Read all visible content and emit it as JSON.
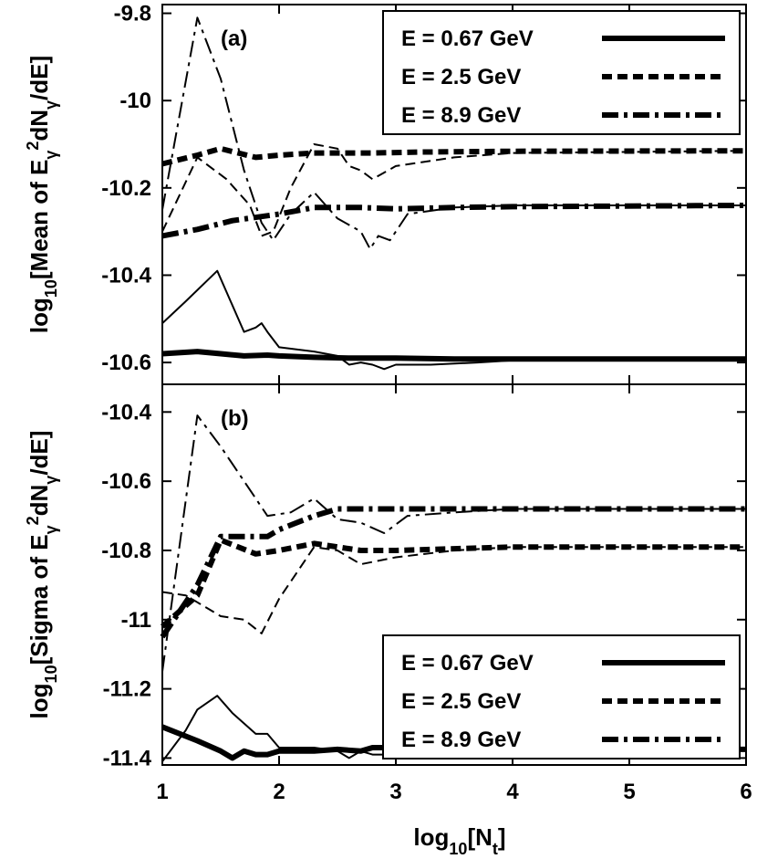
{
  "chart_data": {
    "type": "line",
    "x_axis": {
      "label_parts": [
        "log",
        "10",
        "[N",
        "t",
        "]"
      ],
      "range": [
        1,
        6
      ],
      "ticks": [
        1,
        2,
        3,
        4,
        5,
        6
      ],
      "tick_labels": [
        "1",
        "2",
        "3",
        "4",
        "5",
        "6"
      ]
    },
    "panels": [
      {
        "id": "a",
        "panel_label": "(a)",
        "ylabel_parts": [
          "log",
          "10",
          "[Mean of E",
          "γ",
          "2",
          "dN",
          "γ",
          "/dE]"
        ],
        "ylim": [
          -10.65,
          -9.78
        ],
        "yticks": [
          -9.8,
          -10,
          -10.2,
          -10.4,
          -10.6
        ],
        "ytick_labels": [
          "-9.8",
          "-10",
          "-10.2",
          "-10.4",
          "-10.6"
        ],
        "legend": {
          "position": "top-right",
          "entries": [
            {
              "label": "E = 0.67 GeV",
              "style": "solid"
            },
            {
              "label": "E = 2.5 GeV",
              "style": "dashed"
            },
            {
              "label": "E = 8.9 GeV",
              "style": "dashdot"
            }
          ]
        },
        "series": [
          {
            "name": "E = 0.67 GeV",
            "variant": "thick",
            "style": "solid",
            "x": [
              1,
              1.3,
              1.5,
              1.7,
              1.9,
              2,
              2.3,
              2.6,
              3,
              3.5,
              4,
              6
            ],
            "y": [
              -10.58,
              -10.575,
              -10.58,
              -10.585,
              -10.583,
              -10.585,
              -10.588,
              -10.59,
              -10.59,
              -10.592,
              -10.592,
              -10.592
            ]
          },
          {
            "name": "E = 0.67 GeV",
            "variant": "thin",
            "style": "solid",
            "x": [
              1,
              1.2,
              1.47,
              1.7,
              1.8,
              1.85,
              1.9,
              2,
              2.3,
              2.5,
              2.6,
              2.7,
              2.8,
              2.9,
              3,
              3.3,
              3.7,
              4,
              6
            ],
            "y": [
              -10.51,
              -10.46,
              -10.39,
              -10.53,
              -10.52,
              -10.51,
              -10.53,
              -10.565,
              -10.575,
              -10.585,
              -10.605,
              -10.6,
              -10.605,
              -10.615,
              -10.605,
              -10.605,
              -10.6,
              -10.595,
              -10.595
            ]
          },
          {
            "name": "E = 2.5 GeV",
            "variant": "thick",
            "style": "dashed",
            "x": [
              1,
              1.3,
              1.5,
              1.8,
              2,
              2.3,
              2.8,
              3.2,
              3.6,
              4,
              6
            ],
            "y": [
              -10.145,
              -10.125,
              -10.11,
              -10.13,
              -10.125,
              -10.12,
              -10.12,
              -10.118,
              -10.117,
              -10.116,
              -10.115
            ]
          },
          {
            "name": "E = 2.5 GeV",
            "variant": "thin",
            "style": "dashed",
            "x": [
              1,
              1.3,
              1.55,
              1.75,
              1.85,
              1.95,
              2.1,
              2.3,
              2.5,
              2.6,
              2.7,
              2.8,
              3,
              3.5,
              4,
              6
            ],
            "y": [
              -10.3,
              -10.13,
              -10.18,
              -10.24,
              -10.31,
              -10.3,
              -10.2,
              -10.1,
              -10.11,
              -10.15,
              -10.16,
              -10.18,
              -10.15,
              -10.13,
              -10.12,
              -10.115
            ]
          },
          {
            "name": "E = 8.9 GeV",
            "variant": "thick",
            "style": "dashdot",
            "x": [
              1,
              1.3,
              1.6,
              2,
              2.3,
              2.7,
              3,
              3.5,
              4,
              6
            ],
            "y": [
              -10.31,
              -10.295,
              -10.275,
              -10.26,
              -10.245,
              -10.245,
              -10.248,
              -10.245,
              -10.243,
              -10.24
            ]
          },
          {
            "name": "E = 8.9 GeV",
            "variant": "thin",
            "style": "dashdot",
            "x": [
              1,
              1.3,
              1.5,
              1.7,
              1.85,
              1.95,
              2.1,
              2.3,
              2.5,
              2.7,
              2.78,
              2.85,
              2.95,
              3.1,
              3.5,
              4,
              6
            ],
            "y": [
              -10.25,
              -9.81,
              -9.95,
              -10.16,
              -10.28,
              -10.32,
              -10.26,
              -10.21,
              -10.27,
              -10.3,
              -10.34,
              -10.31,
              -10.32,
              -10.26,
              -10.245,
              -10.24,
              -10.24
            ]
          }
        ]
      },
      {
        "id": "b",
        "panel_label": "(b)",
        "ylabel_parts": [
          "log",
          "10",
          "[Sigma of E",
          "γ",
          "2",
          "dN",
          "γ",
          "/dE]"
        ],
        "ylim": [
          -11.42,
          -10.32
        ],
        "yticks": [
          -10.4,
          -10.6,
          -10.8,
          -11,
          -11.2,
          -11.4
        ],
        "ytick_labels": [
          "-10.4",
          "-10.6",
          "-10.8",
          "-11",
          "-11.2",
          "-11.4"
        ],
        "legend": {
          "position": "bottom-right",
          "entries": [
            {
              "label": "E = 0.67 GeV",
              "style": "solid"
            },
            {
              "label": "E = 2.5 GeV",
              "style": "dashed"
            },
            {
              "label": "E = 8.9 GeV",
              "style": "dashdot"
            }
          ]
        },
        "series": [
          {
            "name": "E = 0.67 GeV",
            "variant": "thick",
            "style": "solid",
            "x": [
              1,
              1.3,
              1.5,
              1.6,
              1.7,
              1.8,
              1.9,
              2,
              2.3,
              2.5,
              2.7,
              2.8,
              2.9,
              3,
              3.5,
              4,
              6
            ],
            "y": [
              -11.31,
              -11.35,
              -11.38,
              -11.4,
              -11.38,
              -11.39,
              -11.39,
              -11.38,
              -11.38,
              -11.375,
              -11.38,
              -11.37,
              -11.37,
              -11.36,
              -11.37,
              -11.375,
              -11.375
            ]
          },
          {
            "name": "E = 0.67 GeV",
            "variant": "thin",
            "style": "solid",
            "x": [
              1,
              1.2,
              1.3,
              1.47,
              1.6,
              1.8,
              1.9,
              2,
              2.3,
              2.5,
              2.6,
              2.7,
              2.8,
              3,
              3.5,
              4,
              6
            ],
            "y": [
              -11.41,
              -11.32,
              -11.26,
              -11.22,
              -11.27,
              -11.33,
              -11.33,
              -11.37,
              -11.37,
              -11.38,
              -11.4,
              -11.38,
              -11.39,
              -11.39,
              -11.38,
              -11.375,
              -11.375
            ]
          },
          {
            "name": "E = 2.5 GeV",
            "variant": "thick",
            "style": "dashed",
            "x": [
              1,
              1.3,
              1.5,
              1.8,
              2,
              2.3,
              2.7,
              3,
              3.5,
              4,
              6
            ],
            "y": [
              -11.02,
              -10.93,
              -10.77,
              -10.81,
              -10.8,
              -10.78,
              -10.8,
              -10.8,
              -10.795,
              -10.79,
              -10.79
            ]
          },
          {
            "name": "E = 2.5 GeV",
            "variant": "thin",
            "style": "dashed",
            "x": [
              1,
              1.2,
              1.3,
              1.5,
              1.7,
              1.85,
              2,
              2.3,
              2.5,
              2.7,
              3,
              3.5,
              4,
              6
            ],
            "y": [
              -10.92,
              -10.93,
              -10.95,
              -10.99,
              -11.0,
              -11.04,
              -10.94,
              -10.79,
              -10.8,
              -10.84,
              -10.82,
              -10.8,
              -10.79,
              -10.79
            ]
          },
          {
            "name": "E = 8.9 GeV",
            "variant": "thick",
            "style": "dashdot",
            "x": [
              1,
              1.3,
              1.5,
              1.7,
              1.9,
              2,
              2.3,
              2.5,
              2.7,
              3,
              4,
              6
            ],
            "y": [
              -11.05,
              -10.9,
              -10.76,
              -10.76,
              -10.76,
              -10.74,
              -10.7,
              -10.68,
              -10.68,
              -10.68,
              -10.68,
              -10.68
            ]
          },
          {
            "name": "E = 8.9 GeV",
            "variant": "thin",
            "style": "dashdot",
            "x": [
              1,
              1.3,
              1.5,
              1.7,
              1.9,
              2.1,
              2.3,
              2.5,
              2.7,
              2.9,
              3.1,
              3.5,
              4,
              6
            ],
            "y": [
              -11.15,
              -10.41,
              -10.5,
              -10.6,
              -10.7,
              -10.69,
              -10.65,
              -10.71,
              -10.72,
              -10.75,
              -10.7,
              -10.69,
              -10.68,
              -10.68
            ]
          }
        ]
      }
    ]
  }
}
